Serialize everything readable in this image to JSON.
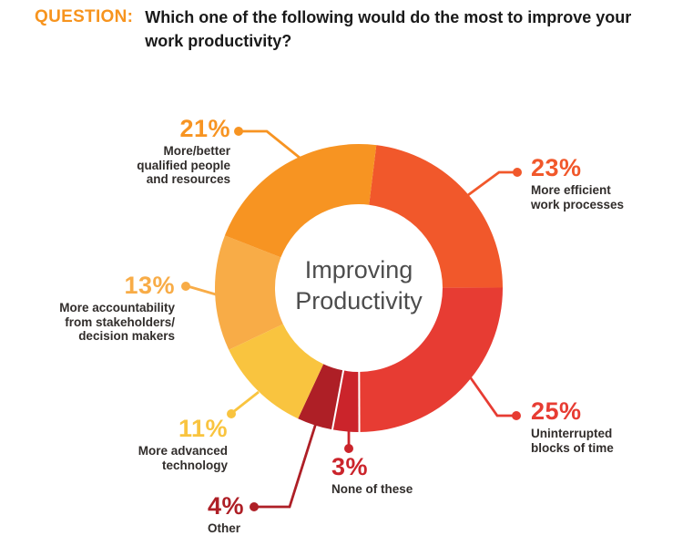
{
  "header": {
    "prefix": "QUESTION:",
    "question": "Which one of the following would do the most to improve your work productivity?",
    "accent_color": "#F7941E",
    "text_color": "#1A1A1A"
  },
  "chart_data": {
    "type": "pie",
    "subtype": "donut",
    "title": "Improving Productivity",
    "center_label": "Improving\nProductivity",
    "center_text_color": "#4D4D4D",
    "label_text_color": "#312D2B",
    "start_angle_deg": 7,
    "direction": "clockwise",
    "units": "%",
    "segments": [
      {
        "value": 23,
        "pct_label": "23%",
        "label": "More efficient\nwork processes",
        "color": "#F1582B",
        "separated": false
      },
      {
        "value": 25,
        "pct_label": "25%",
        "label": "Uninterrupted\nblocks of time",
        "color": "#E73C33",
        "separated": false
      },
      {
        "value": 3,
        "pct_label": "3%",
        "label": "None of these",
        "color": "#CB242B",
        "separated": true
      },
      {
        "value": 4,
        "pct_label": "4%",
        "label": "Other",
        "color": "#AE1F26",
        "separated": false
      },
      {
        "value": 11,
        "pct_label": "11%",
        "label": "More advanced\ntechnology",
        "color": "#F9C43F",
        "separated": false
      },
      {
        "value": 13,
        "pct_label": "13%",
        "label": "More accountability\nfrom stakeholders/\ndecision makers",
        "color": "#F8AC47",
        "separated": false
      },
      {
        "value": 21,
        "pct_label": "21%",
        "label": "More/better\nqualified people\nand resources",
        "color": "#F79422",
        "separated": false
      }
    ]
  }
}
